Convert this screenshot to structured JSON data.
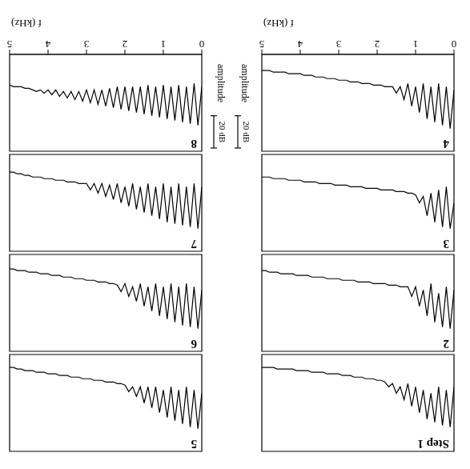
{
  "chart_data": [
    {
      "type": "line",
      "title": "Step 1",
      "color": "#000000",
      "xlim": [
        0,
        5
      ],
      "ylim": [
        -50,
        10
      ],
      "tick_labels": false,
      "x": [
        0,
        0.1,
        0.2,
        0.3,
        0.4,
        0.5,
        0.6,
        0.7,
        0.8,
        0.9,
        1,
        1.1,
        1.2,
        1.3,
        1.4,
        1.5,
        1.6,
        1.7,
        1.8,
        1.9,
        2,
        2.1,
        2.2,
        2.3,
        2.4,
        2.5,
        2.6,
        2.7,
        2.8,
        2.9,
        3,
        3.1,
        3.2,
        3.3,
        3.4,
        3.5,
        3.6,
        3.7,
        3.8,
        3.9,
        4,
        4.1,
        4.2,
        4.3,
        4.4,
        4.5,
        4.6,
        4.7,
        4.8,
        4.9,
        5
      ],
      "values": [
        -30,
        -5,
        -28,
        -6,
        -30,
        -8,
        -26,
        -10,
        -28,
        -14,
        -30,
        -18,
        -32,
        -22,
        -30,
        -26,
        -32,
        -30,
        -33,
        -34,
        -34,
        -35,
        -35,
        -35,
        -36,
        -36,
        -36,
        -37,
        -37,
        -37,
        -38,
        -38,
        -38,
        -38,
        -39,
        -39,
        -39,
        -39,
        -40,
        -40,
        -40,
        -40,
        -41,
        -41,
        -41,
        -41,
        -41,
        -42,
        -42,
        -42,
        -42
      ]
    },
    {
      "type": "line",
      "title": "2",
      "color": "#000000",
      "xlim": [
        0,
        5
      ],
      "ylim": [
        -50,
        10
      ],
      "tick_labels": false,
      "x": [
        0,
        0.1,
        0.2,
        0.3,
        0.4,
        0.5,
        0.6,
        0.7,
        0.8,
        0.9,
        1,
        1.1,
        1.2,
        1.3,
        1.4,
        1.5,
        1.6,
        1.7,
        1.8,
        1.9,
        2,
        2.1,
        2.2,
        2.3,
        2.4,
        2.5,
        2.6,
        2.7,
        2.8,
        2.9,
        3,
        3.1,
        3.2,
        3.3,
        3.4,
        3.5,
        3.6,
        3.7,
        3.8,
        3.9,
        4,
        4.1,
        4.2,
        4.3,
        4.4,
        4.5,
        4.6,
        4.7,
        4.8,
        4.9,
        5
      ],
      "values": [
        -28,
        -4,
        -30,
        -5,
        -26,
        -8,
        -32,
        -12,
        -28,
        -18,
        -30,
        -24,
        -30,
        -30,
        -30,
        -31,
        -31,
        -31,
        -32,
        -32,
        -32,
        -32,
        -33,
        -33,
        -33,
        -33,
        -34,
        -34,
        -34,
        -34,
        -35,
        -35,
        -35,
        -35,
        -36,
        -36,
        -36,
        -36,
        -37,
        -37,
        -37,
        -37,
        -38,
        -38,
        -38,
        -38,
        -39,
        -39,
        -39,
        -40,
        -40
      ]
    },
    {
      "type": "line",
      "title": "3",
      "color": "#000000",
      "xlim": [
        0,
        5
      ],
      "ylim": [
        -50,
        10
      ],
      "tick_labels": false,
      "x": [
        0,
        0.1,
        0.2,
        0.3,
        0.4,
        0.5,
        0.6,
        0.7,
        0.8,
        0.9,
        1,
        1.1,
        1.2,
        1.3,
        1.4,
        1.5,
        1.6,
        1.7,
        1.8,
        1.9,
        2,
        2.1,
        2.2,
        2.3,
        2.4,
        2.5,
        2.6,
        2.7,
        2.8,
        2.9,
        3,
        3.1,
        3.2,
        3.3,
        3.4,
        3.5,
        3.6,
        3.7,
        3.8,
        3.9,
        4,
        4.1,
        4.2,
        4.3,
        4.4,
        4.5,
        4.6,
        4.7,
        4.8,
        4.9,
        5
      ],
      "values": [
        -20,
        -4,
        -30,
        -5,
        -28,
        -8,
        -26,
        -12,
        -24,
        -20,
        -25,
        -26,
        -26,
        -27,
        -27,
        -27,
        -28,
        -28,
        -28,
        -28,
        -29,
        -29,
        -29,
        -29,
        -30,
        -30,
        -30,
        -30,
        -31,
        -31,
        -31,
        -31,
        -32,
        -32,
        -32,
        -32,
        -33,
        -33,
        -33,
        -33,
        -34,
        -34,
        -34,
        -34,
        -35,
        -35,
        -35,
        -35,
        -36,
        -36,
        -36
      ]
    },
    {
      "type": "line",
      "title": "4",
      "color": "#000000",
      "xlim": [
        0,
        5
      ],
      "ylim": [
        -50,
        10
      ],
      "xticks": [
        0,
        1,
        2,
        3,
        4,
        5
      ],
      "tick_labels": "x",
      "xlabel": "f (kHz)",
      "ylabel": "amplitude",
      "scale_bar": {
        "value": 20,
        "label": "20 dB"
      },
      "x": [
        0,
        0.1,
        0.2,
        0.3,
        0.4,
        0.5,
        0.6,
        0.7,
        0.8,
        0.9,
        1,
        1.1,
        1.2,
        1.3,
        1.4,
        1.5,
        1.6,
        1.7,
        1.8,
        1.9,
        2,
        2.1,
        2.2,
        2.3,
        2.4,
        2.5,
        2.6,
        2.7,
        2.8,
        2.9,
        3,
        3.1,
        3.2,
        3.3,
        3.4,
        3.5,
        3.6,
        3.7,
        3.8,
        3.9,
        4,
        4.1,
        4.2,
        4.3,
        4.4,
        4.5,
        4.6,
        4.7,
        4.8,
        4.9,
        5
      ],
      "values": [
        -28,
        -4,
        -30,
        -6,
        -32,
        -8,
        -30,
        -10,
        -32,
        -14,
        -30,
        -18,
        -32,
        -22,
        -30,
        -26,
        -30,
        -30,
        -30,
        -31,
        -31,
        -31,
        -32,
        -32,
        -32,
        -33,
        -33,
        -33,
        -34,
        -34,
        -34,
        -35,
        -35,
        -35,
        -36,
        -36,
        -36,
        -37,
        -37,
        -37,
        -38,
        -38,
        -38,
        -38,
        -39,
        -39,
        -39,
        -39,
        -40,
        -40,
        -40
      ]
    },
    {
      "type": "line",
      "title": "5",
      "color": "#000000",
      "xlim": [
        0,
        5
      ],
      "ylim": [
        -50,
        10
      ],
      "tick_labels": false,
      "x": [
        0,
        0.1,
        0.2,
        0.3,
        0.4,
        0.5,
        0.6,
        0.7,
        0.8,
        0.9,
        1,
        1.1,
        1.2,
        1.3,
        1.4,
        1.5,
        1.6,
        1.7,
        1.8,
        1.9,
        2,
        2.1,
        2.2,
        2.3,
        2.4,
        2.5,
        2.6,
        2.7,
        2.8,
        2.9,
        3,
        3.1,
        3.2,
        3.3,
        3.4,
        3.5,
        3.6,
        3.7,
        3.8,
        3.9,
        4,
        4.1,
        4.2,
        4.3,
        4.4,
        4.5,
        4.6,
        4.7,
        4.8,
        4.9,
        5
      ],
      "values": [
        -26,
        -4,
        -28,
        -5,
        -30,
        -7,
        -28,
        -9,
        -30,
        -11,
        -28,
        -14,
        -30,
        -17,
        -30,
        -20,
        -30,
        -24,
        -30,
        -27,
        -31,
        -32,
        -32,
        -33,
        -33,
        -33,
        -34,
        -34,
        -34,
        -35,
        -35,
        -35,
        -36,
        -36,
        -36,
        -37,
        -37,
        -37,
        -38,
        -38,
        -38,
        -39,
        -39,
        -39,
        -40,
        -40,
        -40,
        -41,
        -41,
        -42,
        -42
      ]
    },
    {
      "type": "line",
      "title": "6",
      "color": "#000000",
      "xlim": [
        0,
        5
      ],
      "ylim": [
        -50,
        10
      ],
      "tick_labels": false,
      "x": [
        0,
        0.1,
        0.2,
        0.3,
        0.4,
        0.5,
        0.6,
        0.7,
        0.8,
        0.9,
        1,
        1.1,
        1.2,
        1.3,
        1.4,
        1.5,
        1.6,
        1.7,
        1.8,
        1.9,
        2,
        2.1,
        2.2,
        2.3,
        2.4,
        2.5,
        2.6,
        2.7,
        2.8,
        2.9,
        3,
        3.1,
        3.2,
        3.3,
        3.4,
        3.5,
        3.6,
        3.7,
        3.8,
        3.9,
        4,
        4.1,
        4.2,
        4.3,
        4.4,
        4.5,
        4.6,
        4.7,
        4.8,
        4.9,
        5
      ],
      "values": [
        -28,
        -4,
        -30,
        -5,
        -32,
        -6,
        -30,
        -8,
        -32,
        -10,
        -30,
        -12,
        -32,
        -15,
        -30,
        -18,
        -32,
        -21,
        -30,
        -24,
        -32,
        -27,
        -31,
        -32,
        -32,
        -33,
        -33,
        -33,
        -34,
        -34,
        -34,
        -35,
        -35,
        -35,
        -36,
        -36,
        -36,
        -37,
        -37,
        -37,
        -38,
        -38,
        -38,
        -39,
        -39,
        -39,
        -40,
        -40,
        -40,
        -41,
        -41
      ]
    },
    {
      "type": "line",
      "title": "7",
      "color": "#000000",
      "xlim": [
        0,
        5
      ],
      "ylim": [
        -50,
        10
      ],
      "tick_labels": false,
      "x": [
        0,
        0.1,
        0.2,
        0.3,
        0.4,
        0.5,
        0.6,
        0.7,
        0.8,
        0.9,
        1,
        1.1,
        1.2,
        1.3,
        1.4,
        1.5,
        1.6,
        1.7,
        1.8,
        1.9,
        2,
        2.1,
        2.2,
        2.3,
        2.4,
        2.5,
        2.6,
        2.7,
        2.8,
        2.9,
        3,
        3.1,
        3.2,
        3.3,
        3.4,
        3.5,
        3.6,
        3.7,
        3.8,
        3.9,
        4,
        4.1,
        4.2,
        4.3,
        4.4,
        4.5,
        4.6,
        4.7,
        4.8,
        4.9,
        5
      ],
      "values": [
        -30,
        -4,
        -32,
        -5,
        -30,
        -6,
        -32,
        -7,
        -30,
        -8,
        -32,
        -10,
        -30,
        -12,
        -32,
        -14,
        -30,
        -16,
        -32,
        -18,
        -30,
        -20,
        -32,
        -22,
        -31,
        -24,
        -32,
        -26,
        -32,
        -28,
        -32,
        -32,
        -32,
        -33,
        -33,
        -33,
        -34,
        -34,
        -34,
        -35,
        -35,
        -35,
        -36,
        -36,
        -36,
        -37,
        -37,
        -38,
        -38,
        -39,
        -39
      ]
    },
    {
      "type": "line",
      "title": "8",
      "color": "#000000",
      "xlim": [
        0,
        5
      ],
      "ylim": [
        -50,
        10
      ],
      "xticks": [
        0,
        1,
        2,
        3,
        4,
        5
      ],
      "tick_labels": "x",
      "xlabel": "f (kHz)",
      "ylabel": "amplitude",
      "scale_bar": {
        "value": 20,
        "label": "20 dB"
      },
      "x": [
        0,
        0.1,
        0.2,
        0.3,
        0.4,
        0.5,
        0.6,
        0.7,
        0.8,
        0.9,
        1,
        1.1,
        1.2,
        1.3,
        1.4,
        1.5,
        1.6,
        1.7,
        1.8,
        1.9,
        2,
        2.1,
        2.2,
        2.3,
        2.4,
        2.5,
        2.6,
        2.7,
        2.8,
        2.9,
        3,
        3.1,
        3.2,
        3.3,
        3.4,
        3.5,
        3.6,
        3.7,
        3.8,
        3.9,
        4,
        4.1,
        4.2,
        4.3,
        4.4,
        4.5,
        4.6,
        4.7,
        4.8,
        4.9,
        5
      ],
      "values": [
        -30,
        -6,
        -32,
        -7,
        -30,
        -8,
        -31,
        -9,
        -30,
        -10,
        -31,
        -11,
        -30,
        -12,
        -31,
        -13,
        -30,
        -14,
        -30,
        -15,
        -30,
        -16,
        -30,
        -17,
        -29,
        -18,
        -28,
        -19,
        -28,
        -20,
        -28,
        -21,
        -27,
        -22,
        -27,
        -23,
        -27,
        -24,
        -28,
        -25,
        -28,
        -26,
        -28,
        -27,
        -28,
        -29,
        -29,
        -30,
        -30,
        -30,
        -31
      ]
    }
  ]
}
